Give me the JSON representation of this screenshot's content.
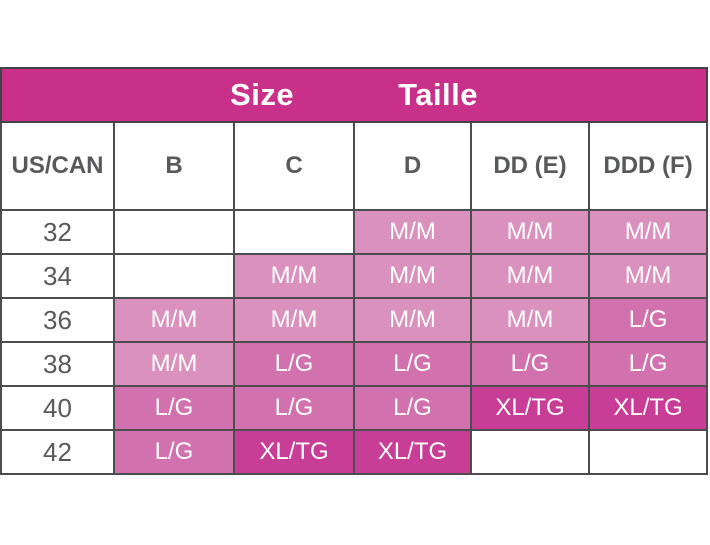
{
  "header": {
    "size_label": "Size",
    "taille_label": "Taille"
  },
  "chart_data": {
    "type": "table",
    "title": "Size Taille",
    "columns": [
      "US/CAN",
      "B",
      "C",
      "D",
      "DD (E)",
      "DDD (F)"
    ],
    "rows": [
      [
        "32",
        "",
        "",
        "M/M",
        "M/M",
        "M/M"
      ],
      [
        "34",
        "",
        "M/M",
        "M/M",
        "M/M",
        "M/M"
      ],
      [
        "36",
        "M/M",
        "M/M",
        "M/M",
        "M/M",
        "L/G"
      ],
      [
        "38",
        "M/M",
        "L/G",
        "L/G",
        "L/G",
        "L/G"
      ],
      [
        "40",
        "L/G",
        "L/G",
        "L/G",
        "XL/TG",
        "XL/TG"
      ],
      [
        "42",
        "L/G",
        "XL/TG",
        "XL/TG",
        "",
        ""
      ]
    ],
    "value_shading": {
      "M/M": "light pink",
      "L/G": "medium pink",
      "XL/TG": "dark magenta",
      "": "white"
    }
  },
  "colors": {
    "header_bg": "#C9308A",
    "header_text": "#FFFFFF",
    "mm_bg": "#DB91BE",
    "lg_bg": "#D171AD",
    "xltg_bg": "#C83D95",
    "empty_bg": "#FFFFFF",
    "label_text": "#58595B",
    "cell_text": "#FFFFFF",
    "border": "#4D4D4F",
    "border_dark": "#434345"
  }
}
